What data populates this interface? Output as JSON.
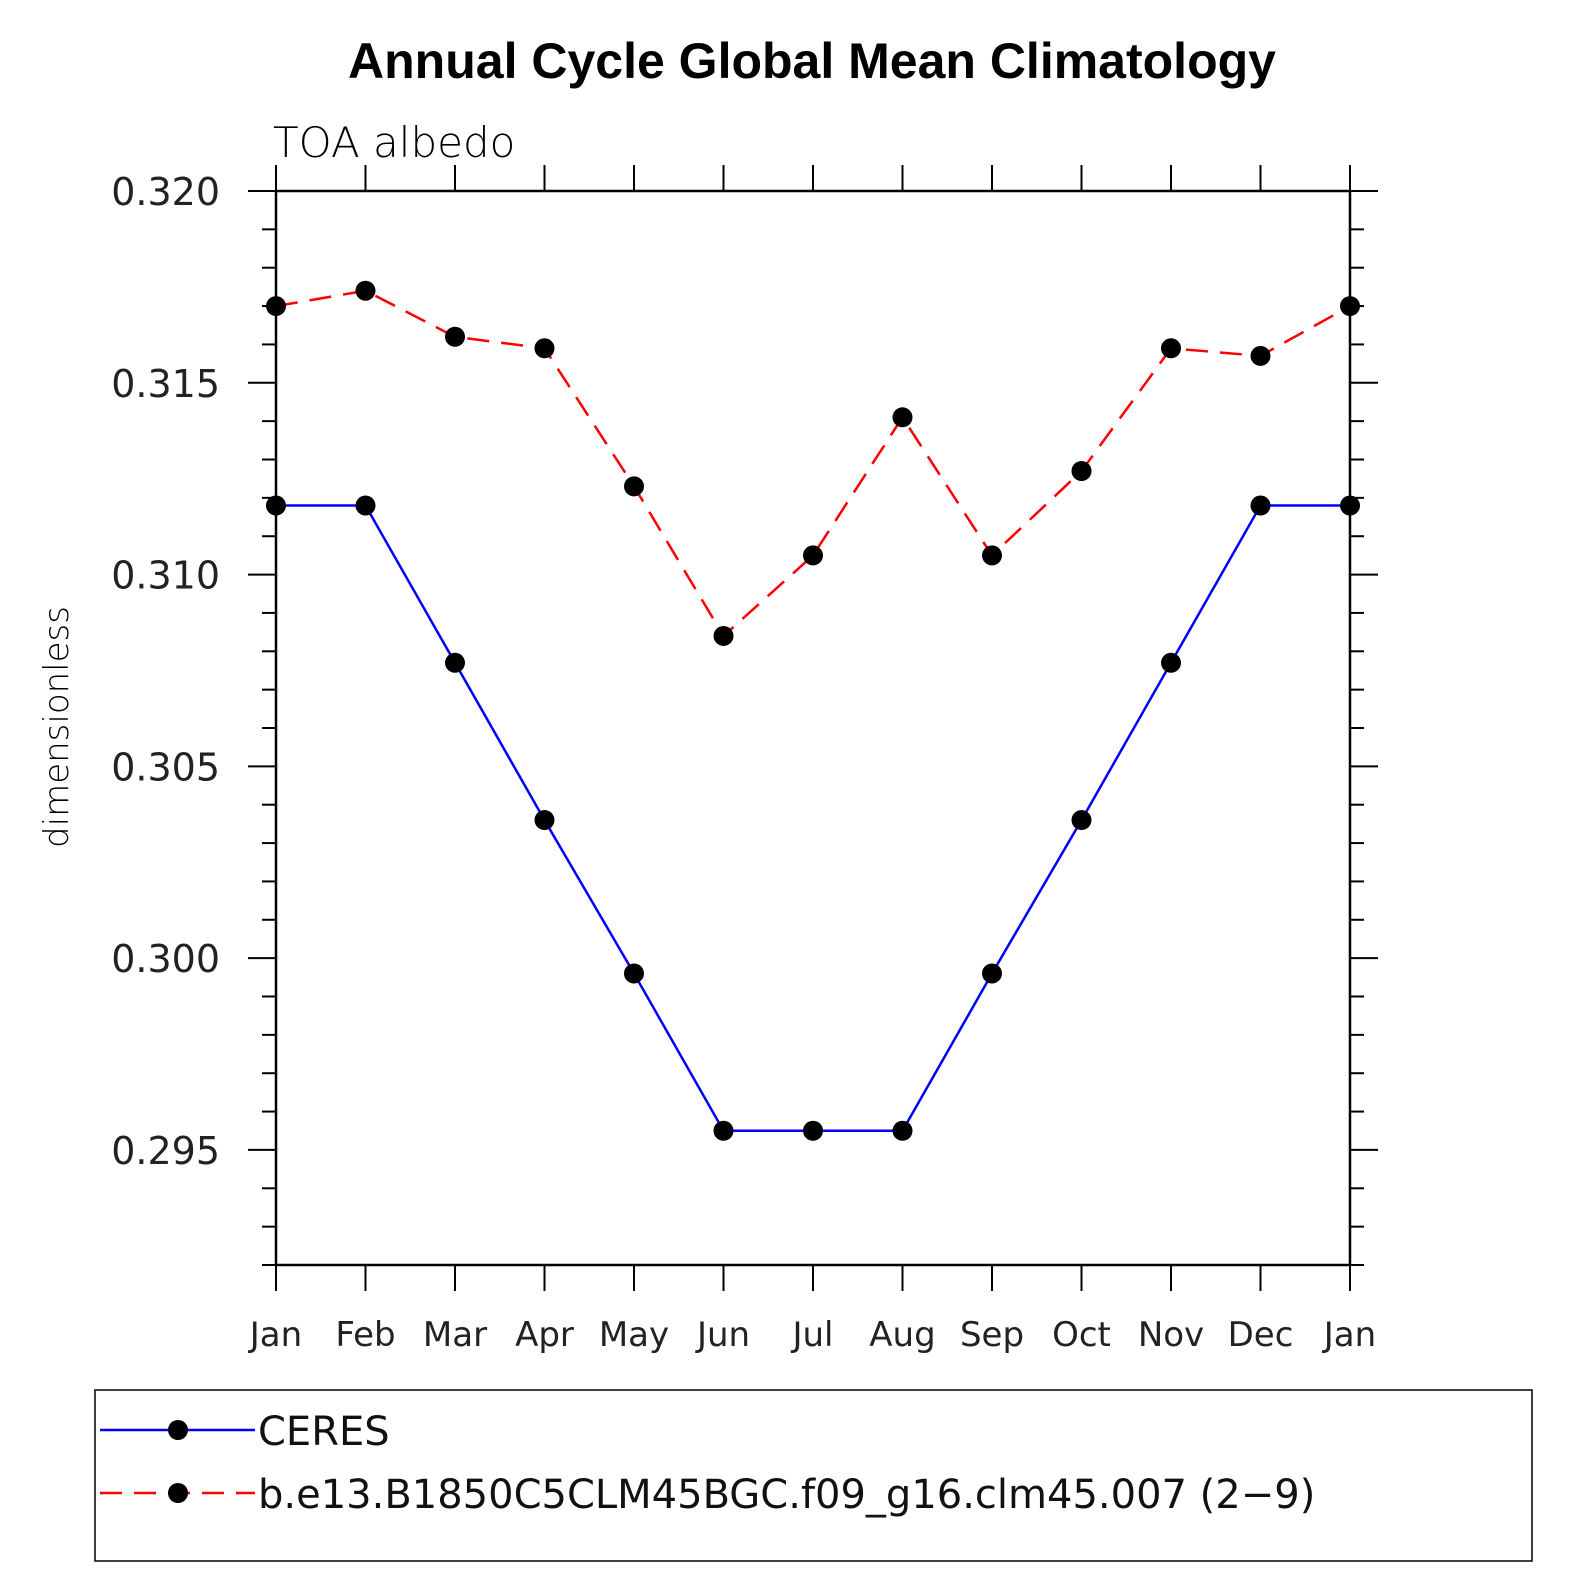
{
  "chart_data": {
    "type": "line",
    "title": "Annual Cycle Global Mean Climatology",
    "subtitle": "TOA albedo",
    "ylabel": "dimensionless",
    "xlabel": "",
    "categories": [
      "Jan",
      "Feb",
      "Mar",
      "Apr",
      "May",
      "Jun",
      "Jul",
      "Aug",
      "Sep",
      "Oct",
      "Nov",
      "Dec",
      "Jan"
    ],
    "ylim": [
      0.292,
      0.32
    ],
    "yticks": [
      0.295,
      0.3,
      0.305,
      0.31,
      0.315,
      0.32
    ],
    "ytick_labels": [
      "0.295",
      "0.300",
      "0.305",
      "0.310",
      "0.315",
      "0.320"
    ],
    "grid": false,
    "legend_position": "bottom",
    "series": [
      {
        "name": "CERES",
        "color": "#0000ff",
        "dash": "solid",
        "values": [
          0.3118,
          0.3118,
          0.3077,
          0.3036,
          0.2996,
          0.2955,
          0.2955,
          0.2955,
          0.2996,
          0.3036,
          0.3077,
          0.3118,
          0.3118
        ]
      },
      {
        "name": "b.e13.B1850C5CLM45BGC.f09_g16.clm45.007 (2−9)",
        "color": "#ff0000",
        "dash": "dashed",
        "values": [
          0.317,
          0.3174,
          0.3162,
          0.3159,
          0.3123,
          0.3084,
          0.3105,
          0.3141,
          0.3105,
          0.3127,
          0.3159,
          0.3157,
          0.317
        ]
      }
    ]
  }
}
